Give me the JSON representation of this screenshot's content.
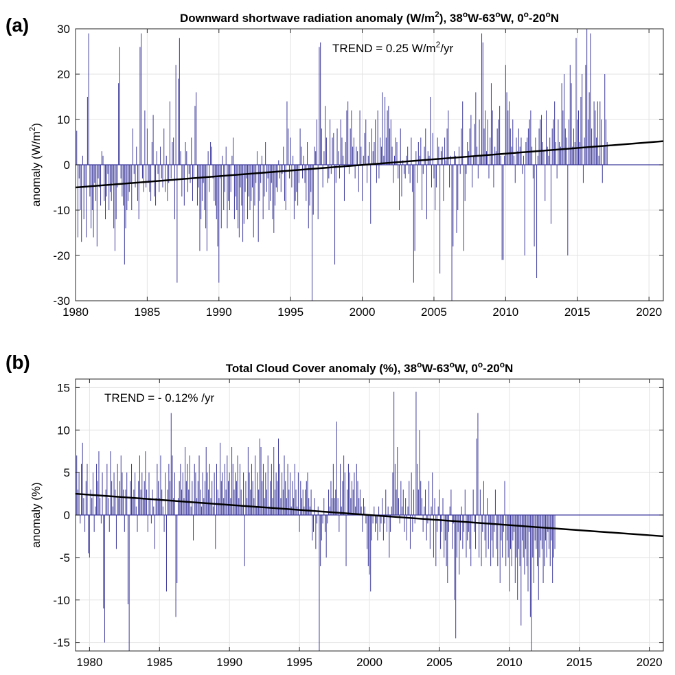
{
  "chart_data": [
    {
      "type": "bar",
      "panel_label": "(a)",
      "title_parts": [
        "Downward shortwave radiation anomaly (W/m",
        "2",
        "), 38",
        "o",
        "W-63",
        "o",
        "W, 0",
        "o",
        "-20",
        "o",
        "N"
      ],
      "ylabel_parts": [
        "anomaly (W/m",
        "2",
        ")"
      ],
      "annotation_parts": [
        "TREND = 0.25 W/m",
        "2",
        "/yr"
      ],
      "xlim": [
        1980,
        2021
      ],
      "ylim": [
        -30,
        30
      ],
      "xticks": [
        "1980",
        "1985",
        "1990",
        "1995",
        "2000",
        "2005",
        "2010",
        "2015",
        "2020"
      ],
      "xtick_values": [
        1980,
        1985,
        1990,
        1995,
        2000,
        2005,
        2010,
        2015,
        2020
      ],
      "yticks": [
        "30",
        "20",
        "10",
        "0",
        "-10",
        "-20",
        "-30"
      ],
      "ytick_values": [
        30,
        20,
        10,
        0,
        -10,
        -20,
        -30
      ],
      "grid": true,
      "bar_color": "#3d3a9c",
      "trend_color": "#000000",
      "trend": {
        "x": [
          1980,
          2021
        ],
        "y": [
          -5.0,
          5.2
        ]
      },
      "series": [
        {
          "x_start": 1980,
          "step": 0.0833333,
          "values": [
            -5,
            7.5,
            -16,
            -3,
            -10,
            -17,
            2,
            -12,
            -5,
            -16,
            15,
            29,
            -7,
            -14,
            -10,
            -16,
            -4,
            -8,
            -18,
            -3,
            -5,
            -9,
            3,
            2,
            -8,
            -12,
            -7,
            -2,
            -10,
            -6,
            -8,
            -4,
            -14,
            -19,
            -12,
            -5,
            18,
            26,
            -3,
            -7,
            -9,
            -22,
            -14,
            -10,
            -8,
            -6,
            -4,
            -10,
            8,
            -2,
            -5,
            4,
            -8,
            -12,
            26,
            29,
            -3,
            -6,
            12,
            -5,
            8,
            -4,
            -6,
            -8,
            5,
            11,
            -7,
            -9,
            3,
            -2,
            -6,
            4,
            -3,
            -5,
            8,
            -6,
            2,
            -8,
            -4,
            14,
            -3,
            5,
            6,
            -12,
            22,
            -26,
            19,
            28,
            3,
            -7,
            -3,
            -9,
            5,
            3,
            -6,
            -2,
            -4,
            6,
            -8,
            -3,
            13,
            16,
            -9,
            -5,
            -19,
            -12,
            -8,
            -4,
            -10,
            -14,
            -19,
            3,
            -6,
            5,
            4,
            -3,
            -8,
            -9,
            -12,
            -18,
            -26,
            -3,
            -14,
            2,
            -10,
            -6,
            4,
            -14,
            -8,
            -10,
            -6,
            2,
            6,
            -12,
            -7,
            -10,
            -14,
            -16,
            -5,
            -9,
            -17,
            -13,
            -6,
            -3,
            -12,
            -7,
            -10,
            -8,
            -5,
            -16,
            -9,
            -4,
            3,
            -17,
            -8,
            -4,
            2,
            -12,
            -7,
            5,
            -6,
            -3,
            -10,
            -8,
            -4,
            -12,
            -15,
            -9,
            -5,
            -6,
            1,
            -3,
            -6,
            -2,
            4,
            -8,
            -10,
            14,
            8,
            -3,
            6,
            -5,
            2,
            -12,
            -8,
            -6,
            -9,
            -4,
            8,
            4,
            -3,
            2,
            -4,
            -8,
            5,
            -14,
            -9,
            -6,
            -30,
            -11,
            4,
            3,
            10,
            -12,
            26,
            27,
            8,
            -5,
            3,
            13,
            6,
            -4,
            -3,
            10,
            -2,
            6,
            7,
            -22,
            -4,
            8,
            3,
            -3,
            10,
            6,
            2,
            -8,
            5,
            12,
            14,
            -2,
            8,
            12,
            4,
            6,
            -3,
            4,
            3,
            -6,
            12,
            4,
            -8,
            2,
            7,
            10,
            -4,
            2,
            5,
            -13,
            8,
            3,
            5,
            10,
            -4,
            12,
            -3,
            6,
            4,
            16,
            2,
            15,
            6,
            12,
            13,
            8,
            10,
            4,
            -4,
            2,
            6,
            5,
            -3,
            -10,
            8,
            -7,
            1,
            -2,
            -3,
            2,
            4,
            -2,
            -4,
            6,
            -6,
            -26,
            -19,
            3,
            -4,
            5,
            2,
            6,
            -10,
            -2,
            4,
            8,
            -12,
            3,
            2,
            15,
            -5,
            7,
            -3,
            -10,
            -5,
            6,
            4,
            -24,
            3,
            4,
            -8,
            6,
            1,
            8,
            12,
            -5,
            2,
            -30,
            -18,
            3,
            2,
            -15,
            -10,
            4,
            -2,
            8,
            14,
            -19,
            -8,
            -2,
            5,
            3,
            8,
            11,
            -5,
            2,
            9,
            16,
            4,
            -3,
            10,
            2,
            29,
            27,
            8,
            12,
            3,
            10,
            -3,
            6,
            18,
            12,
            -5,
            4,
            3,
            8,
            10,
            13,
            2,
            -21,
            -21,
            2,
            22,
            16,
            12,
            14,
            8,
            4,
            10,
            2,
            -4,
            6,
            3,
            8,
            4,
            6,
            -2,
            2,
            -20,
            5,
            6,
            8,
            10,
            12,
            4,
            -3,
            -18,
            6,
            -25,
            2,
            8,
            10,
            11,
            5,
            3,
            -8,
            12,
            4,
            2,
            6,
            -13,
            8,
            10,
            14,
            5,
            -3,
            10,
            5,
            4,
            18,
            12,
            20,
            8,
            6,
            -20,
            10,
            22,
            18,
            4,
            8,
            5,
            28,
            10,
            12,
            5,
            15,
            20,
            -4,
            6,
            22,
            30,
            10,
            16,
            29,
            8,
            4,
            14,
            12,
            6,
            14,
            2,
            14,
            10,
            -4,
            4,
            20,
            10,
            5
          ]
        }
      ]
    },
    {
      "type": "bar",
      "panel_label": "(b)",
      "title_parts": [
        "Total Cloud Cover anomaly (%), 38",
        "o",
        "W-63",
        "o",
        "W, 0",
        "o",
        "-20",
        "o",
        "N"
      ],
      "ylabel_parts": [
        "anomaly (%)"
      ],
      "annotation_parts": [
        "TREND = - 0.12% /yr"
      ],
      "xlim": [
        1979,
        2021
      ],
      "ylim": [
        -16,
        16
      ],
      "xticks": [
        "1980",
        "1985",
        "1990",
        "1995",
        "2000",
        "2005",
        "2010",
        "2015",
        "2020"
      ],
      "xtick_values": [
        1980,
        1985,
        1990,
        1995,
        2000,
        2005,
        2010,
        2015,
        2020
      ],
      "yticks": [
        "15",
        "10",
        "5",
        "0",
        "-5",
        "-10",
        "-15"
      ],
      "ytick_values": [
        15,
        10,
        5,
        0,
        -5,
        -10,
        -15
      ],
      "grid": true,
      "bar_color": "#3d3a9c",
      "trend_color": "#000000",
      "trend": {
        "x": [
          1979,
          2021
        ],
        "y": [
          2.5,
          -2.5
        ]
      },
      "series": [
        {
          "x_start": 1979,
          "step": 0.0833333,
          "values": [
            -3.5,
            7,
            3,
            5,
            -1,
            6,
            8.5,
            2,
            -2,
            4,
            6,
            -4.5,
            -5,
            3,
            2,
            5,
            -2,
            1,
            6,
            4,
            7.5,
            2,
            -1,
            5,
            -11,
            -15,
            3,
            6,
            2,
            -2,
            7.5,
            4,
            1,
            5,
            3,
            -4,
            6,
            2,
            4,
            7,
            5,
            3,
            -2,
            3,
            5,
            -10.5,
            -16,
            4,
            6,
            2,
            3,
            5,
            1,
            -2,
            4,
            7,
            3,
            5,
            2,
            4,
            7.5,
            3,
            -2,
            5,
            2,
            -1,
            3,
            1,
            -4,
            2,
            6,
            4,
            2,
            7,
            3,
            1,
            -2,
            5,
            -9,
            3,
            6,
            4,
            12,
            7,
            2,
            5,
            -12,
            -8,
            2,
            4,
            6,
            3,
            5,
            2,
            8,
            4,
            6,
            3,
            7,
            1,
            4,
            -3,
            6,
            5,
            2,
            4,
            7,
            3,
            1,
            5,
            2,
            4,
            8,
            5,
            3,
            6,
            2,
            4,
            1,
            5,
            -4,
            6,
            3,
            2,
            8.5,
            4,
            5,
            2,
            6,
            3,
            7,
            4,
            5,
            2,
            8,
            6,
            3,
            5,
            4,
            7,
            2,
            6,
            3,
            1,
            5,
            -6,
            4,
            2,
            8,
            5,
            3,
            6,
            4,
            2,
            7,
            1,
            5,
            3,
            9,
            8,
            4,
            6,
            2,
            5,
            3,
            7,
            1,
            4,
            6,
            2,
            8,
            3,
            5,
            4,
            9,
            6,
            2,
            5,
            3,
            7,
            4,
            2,
            6,
            3,
            5,
            1,
            4,
            2,
            6,
            3,
            1,
            5,
            -2,
            4,
            2,
            3,
            1,
            3,
            4,
            5,
            2,
            1,
            3,
            -3,
            -2,
            2,
            -4,
            -1,
            1,
            -16,
            -6,
            -3,
            -1,
            2,
            -2,
            -5,
            -1,
            3,
            1,
            4,
            2,
            6,
            2,
            3,
            11,
            2,
            -2,
            6,
            1,
            4,
            7,
            5,
            -6,
            3,
            6,
            5,
            2,
            4,
            3,
            5,
            1,
            6,
            4,
            2,
            3,
            1,
            -2,
            2,
            1,
            -1,
            -4,
            -6,
            -7,
            -9,
            -3,
            -1,
            1,
            -2,
            -1,
            -3,
            1,
            -2,
            -1,
            2,
            -3,
            -1,
            3,
            -2,
            1,
            -5,
            -2,
            1,
            5,
            14.5,
            6,
            3,
            8,
            2,
            -1,
            4,
            1,
            3,
            -2,
            2,
            -3,
            1,
            4,
            -4,
            5,
            -2,
            3,
            -1,
            14.5,
            6,
            3,
            10,
            4,
            2,
            -2,
            1,
            3,
            -3,
            -1,
            4,
            -4,
            1,
            5,
            -5,
            2,
            -6,
            -2,
            1,
            3,
            -4,
            -2,
            2,
            -5,
            -3,
            -6,
            -8,
            -2,
            1,
            3,
            -4,
            -1,
            -10,
            -14.5,
            -5,
            -2,
            -7,
            -3,
            1,
            -4,
            -2,
            3,
            -5,
            -3,
            -2,
            -4,
            -6,
            -1,
            3,
            -2,
            -4,
            9,
            12,
            -5,
            3,
            -6,
            -2,
            4,
            -3,
            -5,
            2,
            -4,
            -1,
            -6,
            -3,
            -5,
            -2,
            3,
            -4,
            -6,
            -1,
            -8,
            -3,
            -5,
            -2,
            4,
            -6,
            -3,
            -5,
            -9,
            -4,
            -6,
            -3,
            -2,
            -8,
            -5,
            -10,
            -4,
            -6,
            -13,
            -3,
            -5,
            -7,
            -4,
            -6,
            -9,
            -2,
            -12,
            -16,
            -5,
            -8,
            -3,
            -4,
            -6,
            -10,
            -5,
            -3,
            -4,
            -8,
            -6,
            -3,
            -5,
            -2,
            -4,
            -6,
            -3,
            -8,
            -5,
            -4
          ]
        }
      ]
    }
  ]
}
